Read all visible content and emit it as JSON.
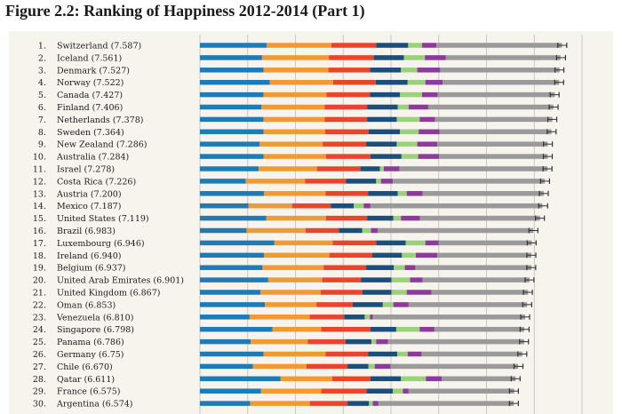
{
  "chart_data": {
    "type": "bar",
    "stacked": true,
    "orientation": "horizontal",
    "title": "Figure 2.2: Ranking of Happiness 2012-2014 (Part 1)",
    "series_colors": [
      "#1f7bb5",
      "#f09a36",
      "#e8452c",
      "#1b4e7a",
      "#9bd17a",
      "#8e3a9b",
      "#9a9a9a"
    ],
    "error_bar_color": "#333333",
    "xlim": [
      0,
      8
    ],
    "grid_values": [
      0,
      1,
      2,
      3,
      4,
      5,
      6,
      7,
      8
    ],
    "rows": [
      {
        "rank": "1.",
        "label": "Switzerland (7.587)",
        "score": 7.587,
        "segments": [
          1.4,
          1.35,
          0.94,
          0.67,
          0.29,
          0.3,
          2.63
        ]
      },
      {
        "rank": "2.",
        "label": "Iceland (7.561)",
        "score": 7.561,
        "segments": [
          1.3,
          1.4,
          0.94,
          0.63,
          0.44,
          0.44,
          2.4
        ]
      },
      {
        "rank": "3.",
        "label": "Denmark (7.527)",
        "score": 7.527,
        "segments": [
          1.33,
          1.36,
          0.87,
          0.65,
          0.34,
          0.48,
          2.5
        ]
      },
      {
        "rank": "4.",
        "label": "Norway (7.522)",
        "score": 7.522,
        "segments": [
          1.46,
          1.33,
          0.89,
          0.67,
          0.37,
          0.36,
          2.44
        ]
      },
      {
        "rank": "5.",
        "label": "Canada (7.427)",
        "score": 7.427,
        "segments": [
          1.33,
          1.32,
          0.91,
          0.63,
          0.46,
          0.33,
          2.45
        ]
      },
      {
        "rank": "6.",
        "label": "Finland (7.406)",
        "score": 7.406,
        "segments": [
          1.29,
          1.32,
          0.89,
          0.64,
          0.23,
          0.41,
          2.62
        ]
      },
      {
        "rank": "7.",
        "label": "Netherlands (7.378)",
        "score": 7.378,
        "segments": [
          1.33,
          1.28,
          0.89,
          0.62,
          0.48,
          0.32,
          2.46
        ]
      },
      {
        "rank": "8.",
        "label": "Sweden (7.364)",
        "score": 7.364,
        "segments": [
          1.33,
          1.29,
          0.91,
          0.66,
          0.39,
          0.44,
          2.34
        ]
      },
      {
        "rank": "9.",
        "label": "New Zealand (7.286)",
        "score": 7.286,
        "segments": [
          1.25,
          1.32,
          0.91,
          0.64,
          0.43,
          0.42,
          2.31
        ]
      },
      {
        "rank": "10.",
        "label": "Australia (7.284)",
        "score": 7.284,
        "segments": [
          1.33,
          1.31,
          0.93,
          0.65,
          0.35,
          0.44,
          2.27
        ]
      },
      {
        "rank": "11.",
        "label": "Israel (7.278)",
        "score": 7.278,
        "segments": [
          1.23,
          1.22,
          0.91,
          0.41,
          0.08,
          0.33,
          3.1
        ]
      },
      {
        "rank": "12.",
        "label": "Costa Rica (7.226)",
        "score": 7.226,
        "segments": [
          0.96,
          1.24,
          0.86,
          0.63,
          0.1,
          0.25,
          3.18
        ]
      },
      {
        "rank": "13.",
        "label": "Austria (7.200)",
        "score": 7.2,
        "segments": [
          1.34,
          1.29,
          0.89,
          0.62,
          0.19,
          0.33,
          2.54
        ]
      },
      {
        "rank": "14.",
        "label": "Mexico (7.187)",
        "score": 7.187,
        "segments": [
          1.02,
          0.91,
          0.81,
          0.48,
          0.21,
          0.14,
          3.6
        ]
      },
      {
        "rank": "15.",
        "label": "United States (7.119)",
        "score": 7.119,
        "segments": [
          1.39,
          1.25,
          0.86,
          0.55,
          0.16,
          0.4,
          2.51
        ]
      },
      {
        "rank": "16.",
        "label": "Brazil (6.983)",
        "score": 6.983,
        "segments": [
          0.98,
          1.23,
          0.7,
          0.49,
          0.18,
          0.14,
          3.26
        ]
      },
      {
        "rank": "17.",
        "label": "Luxembourg (6.946)",
        "score": 6.946,
        "segments": [
          1.56,
          1.22,
          0.91,
          0.62,
          0.41,
          0.28,
          1.95
        ]
      },
      {
        "rank": "18.",
        "label": "Ireland (6.940)",
        "score": 6.94,
        "segments": [
          1.34,
          1.37,
          0.9,
          0.62,
          0.29,
          0.45,
          1.97
        ]
      },
      {
        "rank": "19.",
        "label": "Belgium (6.937)",
        "score": 6.937,
        "segments": [
          1.31,
          1.28,
          0.89,
          0.58,
          0.23,
          0.22,
          2.43
        ]
      },
      {
        "rank": "20.",
        "label": "United Arab Emirates (6.901)",
        "score": 6.901,
        "segments": [
          1.43,
          1.13,
          0.81,
          0.64,
          0.39,
          0.26,
          2.24
        ]
      },
      {
        "rank": "21.",
        "label": "United Kingdom (6.867)",
        "score": 6.867,
        "segments": [
          1.27,
          1.26,
          0.87,
          0.61,
          0.32,
          0.52,
          2.02
        ]
      },
      {
        "rank": "22.",
        "label": "Oman (6.853)",
        "score": 6.853,
        "segments": [
          1.36,
          1.08,
          0.76,
          0.63,
          0.22,
          0.32,
          2.48
        ]
      },
      {
        "rank": "23.",
        "label": "Venezuela (6.810)",
        "score": 6.81,
        "segments": [
          1.04,
          1.26,
          0.72,
          0.43,
          0.11,
          0.06,
          3.19
        ]
      },
      {
        "rank": "24.",
        "label": "Singapore (6.798)",
        "score": 6.798,
        "segments": [
          1.52,
          1.02,
          1.03,
          0.54,
          0.49,
          0.31,
          1.88
        ]
      },
      {
        "rank": "25.",
        "label": "Panama (6.786)",
        "score": 6.786,
        "segments": [
          1.06,
          1.2,
          0.79,
          0.54,
          0.1,
          0.25,
          2.85
        ]
      },
      {
        "rank": "26.",
        "label": "Germany (6.75)",
        "score": 6.75,
        "segments": [
          1.33,
          1.3,
          0.89,
          0.61,
          0.22,
          0.29,
          2.11
        ]
      },
      {
        "rank": "27.",
        "label": "Chile (6.670)",
        "score": 6.67,
        "segments": [
          1.11,
          1.12,
          0.86,
          0.44,
          0.13,
          0.33,
          2.67
        ]
      },
      {
        "rank": "28.",
        "label": "Qatar (6.611)",
        "score": 6.611,
        "segments": [
          1.69,
          1.08,
          0.8,
          0.64,
          0.52,
          0.33,
          1.55
        ]
      },
      {
        "rank": "29.",
        "label": "France (6.575)",
        "score": 6.575,
        "segments": [
          1.28,
          1.26,
          0.95,
          0.55,
          0.21,
          0.12,
          2.21
        ]
      },
      {
        "rank": "30.",
        "label": "Argentina (6.574)",
        "score": 6.574,
        "segments": [
          1.05,
          1.25,
          0.79,
          0.45,
          0.08,
          0.11,
          2.84
        ]
      }
    ]
  }
}
